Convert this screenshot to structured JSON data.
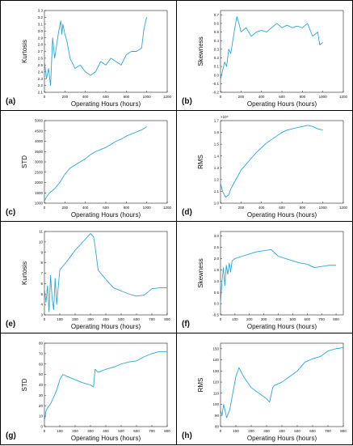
{
  "colors": {
    "line": "#2aa7d6",
    "axis": "#222222",
    "text": "#111111"
  },
  "chart_data": [
    {
      "panel_label": "(a)",
      "type": "line",
      "xlabel": "Operating Hours (hours)",
      "ylabel": "Kurtosis",
      "xlim": [
        0,
        1200
      ],
      "ylim": [
        2.1,
        3.3
      ],
      "xtick_step": 200,
      "ytick_step": 0.1,
      "ytick_decimals": 1,
      "y_exponent": "",
      "x": [
        0,
        20,
        40,
        60,
        80,
        100,
        120,
        140,
        160,
        170,
        180,
        200,
        220,
        250,
        300,
        350,
        400,
        450,
        500,
        550,
        600,
        650,
        700,
        750,
        800,
        850,
        900,
        950,
        970,
        990,
        1000
      ],
      "y": [
        2.55,
        2.3,
        2.45,
        2.2,
        2.9,
        2.6,
        2.8,
        3.0,
        3.15,
        2.95,
        3.1,
        2.95,
        2.85,
        2.6,
        2.45,
        2.5,
        2.4,
        2.35,
        2.4,
        2.55,
        2.5,
        2.6,
        2.55,
        2.5,
        2.65,
        2.7,
        2.7,
        2.75,
        3.0,
        3.15,
        3.2
      ]
    },
    {
      "panel_label": "(b)",
      "type": "line",
      "xlabel": "Operating Hours (hours)",
      "ylabel": "Skewness",
      "xlim": [
        0,
        1200
      ],
      "ylim": [
        -0.2,
        0.75
      ],
      "xtick_step": 200,
      "ytick_step": 0.1,
      "ytick_decimals": 1,
      "y_exponent": "",
      "x": [
        0,
        20,
        40,
        60,
        80,
        100,
        120,
        140,
        160,
        180,
        200,
        250,
        300,
        350,
        400,
        450,
        500,
        550,
        600,
        650,
        700,
        750,
        800,
        850,
        900,
        950,
        970,
        1000
      ],
      "y": [
        -0.05,
        0.05,
        0.15,
        0.1,
        0.3,
        0.25,
        0.4,
        0.55,
        0.68,
        0.6,
        0.5,
        0.55,
        0.45,
        0.5,
        0.52,
        0.5,
        0.55,
        0.6,
        0.55,
        0.58,
        0.55,
        0.57,
        0.55,
        0.6,
        0.45,
        0.5,
        0.35,
        0.38
      ]
    },
    {
      "panel_label": "(c)",
      "type": "line",
      "xlabel": "Operating Hours (hours)",
      "ylabel": "STD",
      "xlim": [
        0,
        1200
      ],
      "ylim": [
        1000,
        5000
      ],
      "xtick_step": 200,
      "ytick_step": 500,
      "ytick_decimals": 0,
      "y_exponent": "",
      "x": [
        0,
        20,
        50,
        100,
        150,
        200,
        250,
        300,
        350,
        400,
        450,
        500,
        550,
        600,
        650,
        700,
        750,
        800,
        850,
        900,
        950,
        1000
      ],
      "y": [
        1100,
        1300,
        1500,
        1700,
        2000,
        2400,
        2700,
        2850,
        3000,
        3150,
        3350,
        3500,
        3600,
        3700,
        3850,
        4000,
        4100,
        4250,
        4350,
        4450,
        4550,
        4700
      ]
    },
    {
      "panel_label": "(d)",
      "type": "line",
      "xlabel": "Operating Hours (hours)",
      "ylabel": "RMS",
      "xlim": [
        0,
        1200
      ],
      "ylim": [
        1.0,
        1.7
      ],
      "xtick_step": 200,
      "ytick_step": 0.1,
      "ytick_decimals": 1,
      "y_exponent": "×10⁴",
      "x": [
        0,
        20,
        50,
        80,
        100,
        150,
        200,
        250,
        300,
        350,
        400,
        450,
        500,
        550,
        600,
        650,
        700,
        750,
        800,
        850,
        900,
        950,
        1000
      ],
      "y": [
        1.17,
        1.1,
        1.05,
        1.07,
        1.12,
        1.2,
        1.28,
        1.33,
        1.38,
        1.43,
        1.47,
        1.51,
        1.54,
        1.57,
        1.6,
        1.62,
        1.63,
        1.64,
        1.65,
        1.66,
        1.65,
        1.63,
        1.62
      ]
    },
    {
      "panel_label": "(e)",
      "type": "line",
      "xlabel": "Operating Hours (hours)",
      "ylabel": "Kurtosis",
      "xlim": [
        0,
        800
      ],
      "ylim": [
        3,
        11
      ],
      "xtick_step": 100,
      "ytick_step": 1,
      "ytick_decimals": 0,
      "y_exponent": "",
      "x": [
        0,
        10,
        20,
        30,
        40,
        50,
        60,
        70,
        80,
        100,
        150,
        200,
        250,
        300,
        320,
        330,
        350,
        400,
        450,
        500,
        550,
        600,
        650,
        700,
        750,
        800
      ],
      "y": [
        5.5,
        4.2,
        5.8,
        3.3,
        6.8,
        4.6,
        3.5,
        6.5,
        4.0,
        7.3,
        8.2,
        9.2,
        10.0,
        10.8,
        10.5,
        9.6,
        7.3,
        6.4,
        5.6,
        5.3,
        5.0,
        4.8,
        4.9,
        5.5,
        5.6,
        5.6
      ]
    },
    {
      "panel_label": "(f)",
      "type": "line",
      "xlabel": "Operating Hours (hours)",
      "ylabel": "Skewness",
      "xlim": [
        0,
        850
      ],
      "ylim": [
        -0.5,
        3.2
      ],
      "xtick_step": 100,
      "ytick_step": 0.5,
      "ytick_decimals": 1,
      "y_exponent": "",
      "x": [
        0,
        10,
        20,
        30,
        40,
        50,
        60,
        70,
        80,
        100,
        150,
        200,
        250,
        300,
        350,
        400,
        450,
        500,
        550,
        600,
        650,
        700,
        750,
        800
      ],
      "y": [
        0.0,
        1.0,
        1.6,
        0.8,
        1.7,
        1.3,
        1.8,
        1.4,
        1.9,
        2.0,
        2.1,
        2.2,
        2.3,
        2.35,
        2.4,
        2.1,
        2.0,
        1.9,
        1.8,
        1.75,
        1.6,
        1.65,
        1.7,
        1.7
      ]
    },
    {
      "panel_label": "(g)",
      "type": "line",
      "xlabel": "Operating Hours (hours)",
      "ylabel": "STD",
      "xlim": [
        0,
        800
      ],
      "ylim": [
        0,
        80
      ],
      "xtick_step": 100,
      "ytick_step": 10,
      "ytick_decimals": 0,
      "y_exponent": "",
      "x": [
        0,
        10,
        20,
        40,
        60,
        80,
        100,
        120,
        150,
        200,
        250,
        300,
        320,
        330,
        350,
        400,
        450,
        500,
        550,
        600,
        650,
        700,
        750,
        800
      ],
      "y": [
        5,
        15,
        18,
        22,
        28,
        35,
        45,
        50,
        48,
        45,
        42,
        40,
        38,
        55,
        52,
        55,
        57,
        60,
        62,
        63,
        67,
        70,
        72,
        72
      ]
    },
    {
      "panel_label": "(h)",
      "type": "line",
      "xlabel": "Operating Hours (hours)",
      "ylabel": "RMS",
      "xlim": [
        0,
        800
      ],
      "ylim": [
        80,
        155
      ],
      "xtick_step": 100,
      "ytick_step": 10,
      "ytick_decimals": 0,
      "y_exponent": "",
      "x": [
        0,
        10,
        20,
        40,
        60,
        80,
        100,
        120,
        150,
        200,
        250,
        300,
        320,
        340,
        350,
        400,
        450,
        500,
        550,
        600,
        650,
        700,
        750,
        800
      ],
      "y": [
        95,
        90,
        100,
        88,
        95,
        110,
        125,
        133,
        125,
        115,
        110,
        105,
        102,
        115,
        117,
        120,
        125,
        130,
        138,
        141,
        143,
        148,
        150,
        151
      ]
    }
  ]
}
